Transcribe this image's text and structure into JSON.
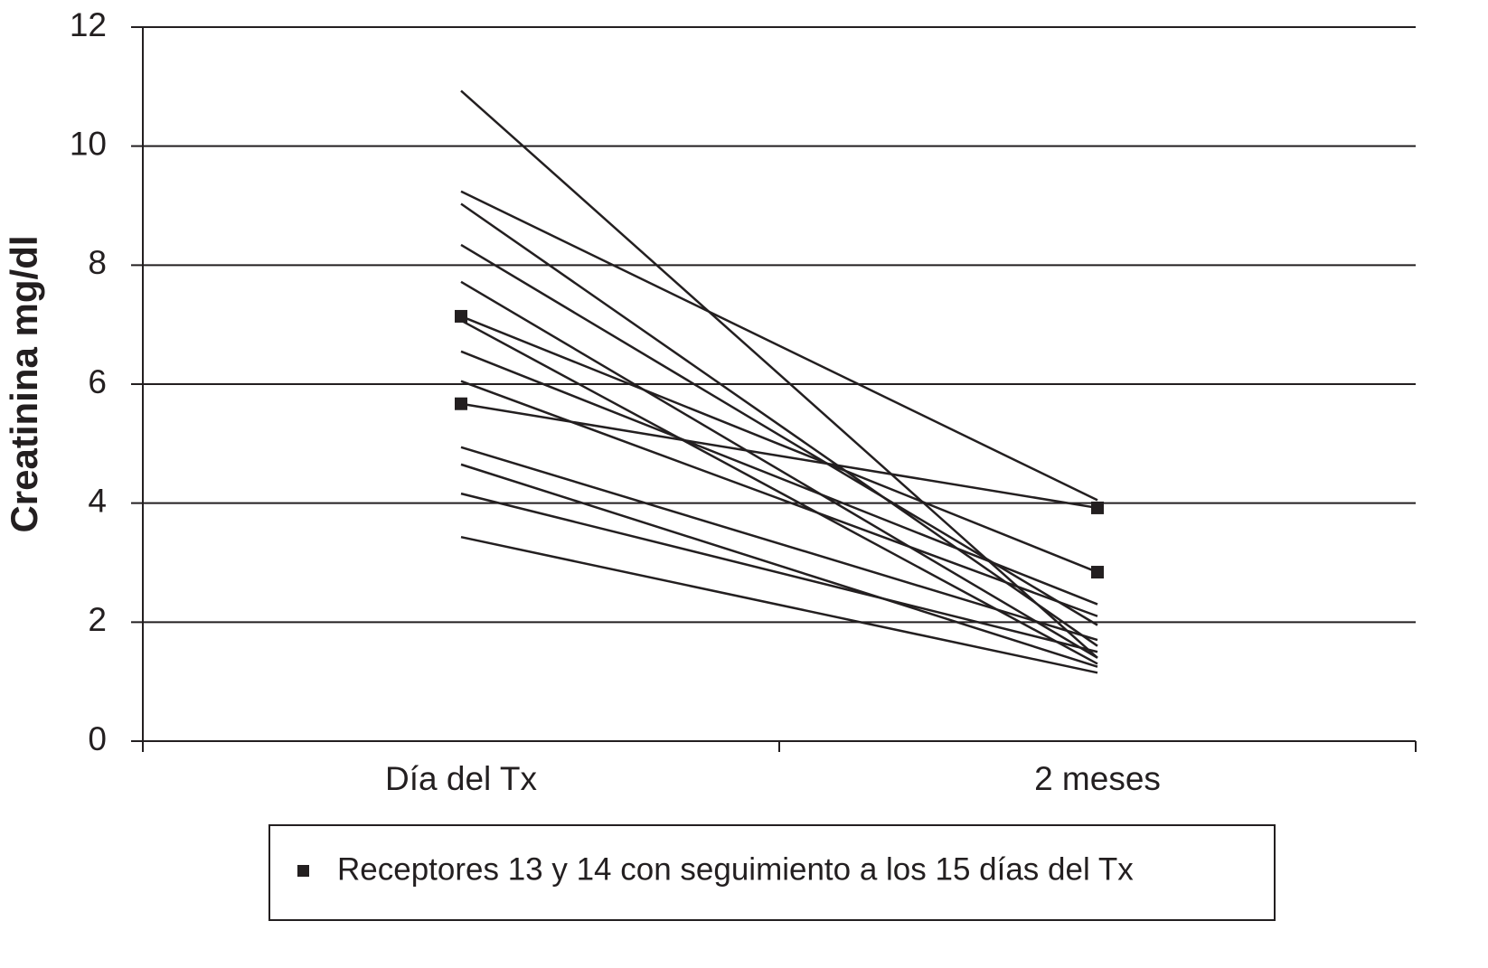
{
  "chart_data": {
    "type": "line",
    "y_label": "Creatinina mg/dl",
    "categories": [
      "Día del Tx",
      "2 meses"
    ],
    "color": "#231f20",
    "series": [
      {
        "values": [
          10.93,
          1.4
        ]
      },
      {
        "values": [
          9.24,
          4.05
        ]
      },
      {
        "values": [
          9.03,
          1.6
        ]
      },
      {
        "values": [
          8.34,
          1.95
        ]
      },
      {
        "values": [
          7.72,
          1.4
        ]
      },
      {
        "values": [
          7.14,
          2.84
        ],
        "marker": "square"
      },
      {
        "values": [
          7.07,
          1.3
        ]
      },
      {
        "values": [
          6.55,
          2.3
        ]
      },
      {
        "values": [
          6.05,
          2.1
        ]
      },
      {
        "values": [
          5.67,
          3.92
        ],
        "marker": "square"
      },
      {
        "values": [
          4.94,
          1.7
        ]
      },
      {
        "values": [
          4.65,
          1.25
        ]
      },
      {
        "values": [
          4.16,
          1.5
        ]
      },
      {
        "values": [
          3.43,
          1.15
        ]
      }
    ],
    "legend": {
      "label": "Receptores  13 y 14 con seguimiento a los 15 días del Tx",
      "marker": "square"
    },
    "ylim": [
      0,
      12
    ],
    "yticks": [
      0,
      2,
      4,
      6,
      8,
      10,
      12
    ],
    "grid": true
  }
}
